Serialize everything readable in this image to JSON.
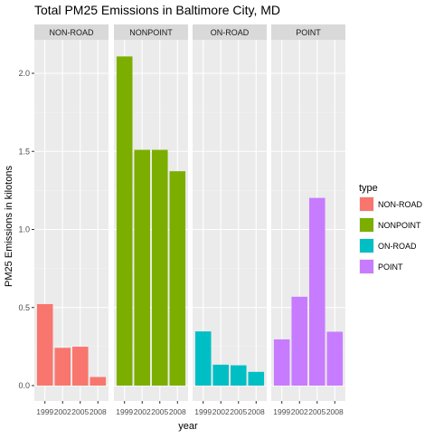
{
  "chart_data": {
    "type": "bar",
    "title": "Total PM25 Emissions in Baltimore City, MD",
    "xlabel": "year",
    "ylabel": "PM25 Emissions in kilotons",
    "categories": [
      "1999",
      "2002",
      "2005",
      "2008"
    ],
    "ylim": [
      0,
      2.2
    ],
    "yticks": [
      "0.0",
      "0.5",
      "1.0",
      "1.5",
      "2.0"
    ],
    "facets": [
      {
        "name": "NON-ROAD",
        "color": "#F8766D",
        "values": [
          0.522,
          0.242,
          0.249,
          0.055
        ]
      },
      {
        "name": "NONPOINT",
        "color": "#7CAE00",
        "values": [
          2.108,
          1.51,
          1.51,
          1.373
        ]
      },
      {
        "name": "ON-ROAD",
        "color": "#00BFC4",
        "values": [
          0.347,
          0.134,
          0.13,
          0.088
        ]
      },
      {
        "name": "POINT",
        "color": "#C77CFF",
        "values": [
          0.296,
          0.569,
          1.202,
          0.345
        ]
      }
    ],
    "legend": {
      "title": "type",
      "placement": "right",
      "entries": [
        "NON-ROAD",
        "NONPOINT",
        "ON-ROAD",
        "POINT"
      ]
    },
    "grid": true
  }
}
